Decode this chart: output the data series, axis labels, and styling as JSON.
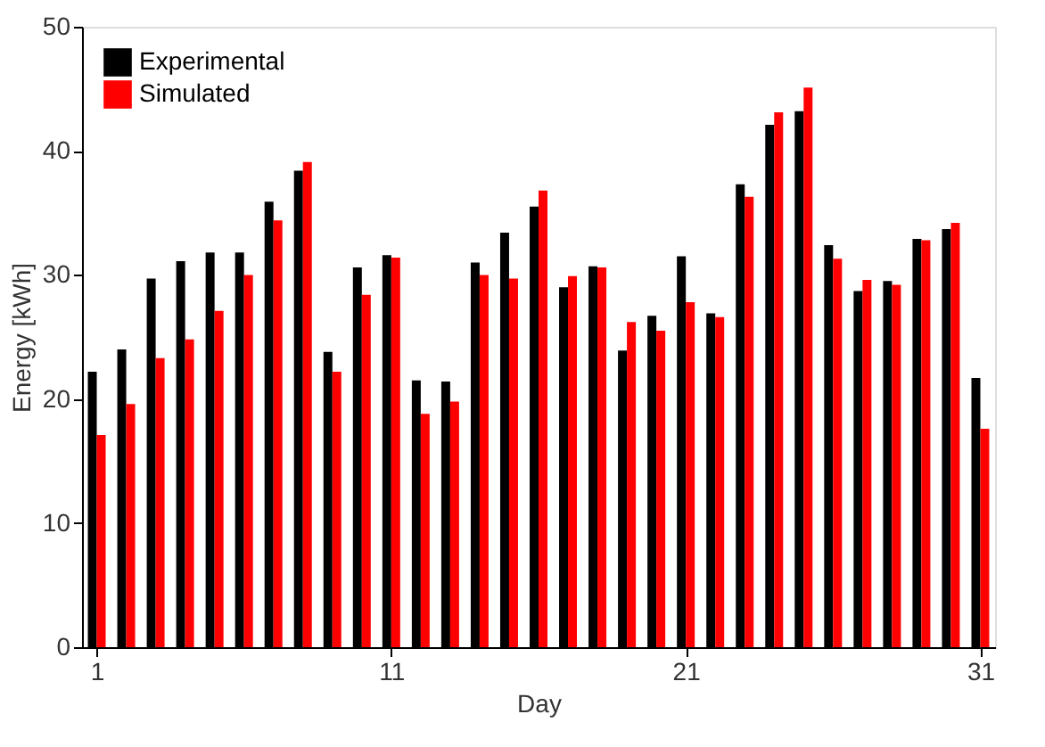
{
  "chart_data": {
    "type": "bar",
    "xlabel": "Day",
    "ylabel": "Energy [kWh]",
    "x": [
      1,
      2,
      3,
      4,
      5,
      6,
      7,
      8,
      9,
      10,
      11,
      12,
      13,
      14,
      15,
      16,
      17,
      18,
      19,
      20,
      21,
      22,
      23,
      24,
      25,
      26,
      27,
      28,
      29,
      30,
      31
    ],
    "series": [
      {
        "name": "Experimental",
        "color": "#000000",
        "values": [
          22.2,
          24.0,
          29.7,
          31.1,
          31.8,
          31.8,
          35.9,
          38.4,
          23.8,
          30.6,
          31.6,
          21.5,
          21.4,
          31.0,
          33.4,
          35.5,
          29.0,
          30.7,
          23.9,
          26.7,
          31.5,
          26.9,
          37.3,
          42.1,
          43.2,
          32.4,
          28.7,
          29.5,
          32.9,
          33.7,
          21.7
        ]
      },
      {
        "name": "Simulated",
        "color": "#ff0000",
        "values": [
          17.1,
          19.6,
          23.3,
          24.8,
          27.1,
          30.0,
          34.4,
          39.1,
          22.2,
          28.4,
          31.4,
          18.8,
          19.8,
          30.0,
          29.7,
          36.8,
          29.9,
          30.6,
          26.2,
          25.5,
          27.8,
          26.6,
          36.3,
          43.1,
          45.1,
          31.3,
          29.6,
          29.2,
          32.8,
          34.2,
          17.6
        ]
      }
    ],
    "xlim": [
      0.5,
      31.5
    ],
    "xticks": [
      1,
      11,
      21,
      31
    ],
    "ylim": [
      0,
      50
    ],
    "yticks": [
      0,
      10,
      20,
      30,
      40,
      50
    ],
    "grid": false,
    "legend": "top left"
  }
}
